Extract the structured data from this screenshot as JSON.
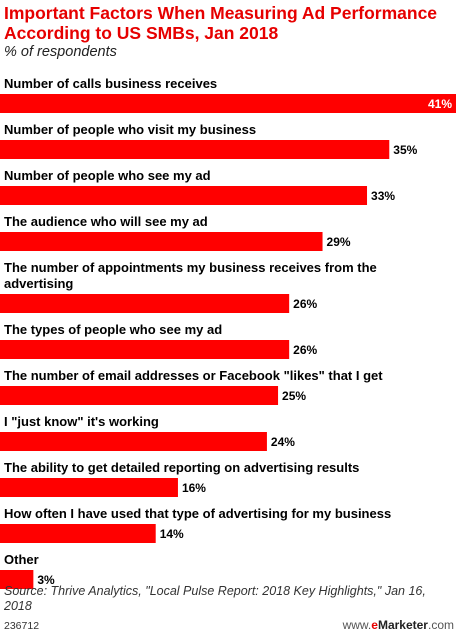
{
  "title": "Important Factors When Measuring Ad Performance According to US SMBs, Jan 2018",
  "subtitle": "% of respondents",
  "source": "Source: Thrive Analytics, \"Local Pulse Report: 2018 Key Highlights,\" Jan 16, 2018",
  "chart_id": "236712",
  "brand": {
    "prefix": "www.",
    "e": "e",
    "name": "Marketer",
    "suffix": ".com"
  },
  "colors": {
    "bar": "#ff0000",
    "title": "#e60000",
    "value_inside": "#ffffff",
    "value_outside": "#000000"
  },
  "chart_data": {
    "type": "bar",
    "orientation": "horizontal",
    "xlim": [
      0,
      41
    ],
    "grid": false,
    "value_suffix": "%",
    "categories": [
      [
        "Number of calls business receives"
      ],
      [
        "Number of people who visit my business"
      ],
      [
        "Number of people who see my ad"
      ],
      [
        "The audience who will see my ad"
      ],
      [
        "The number of appointments my business receives from the",
        "advertising"
      ],
      [
        "The types of people who see my ad"
      ],
      [
        "The number of email addresses or Facebook \"likes\" that I get"
      ],
      [
        "I \"just know\" it's working"
      ],
      [
        "The ability to get detailed reporting on advertising results"
      ],
      [
        "How often I have used that type of advertising for my business"
      ],
      [
        "Other"
      ]
    ],
    "values": [
      41,
      35,
      33,
      29,
      26,
      26,
      25,
      24,
      16,
      14,
      3
    ]
  }
}
